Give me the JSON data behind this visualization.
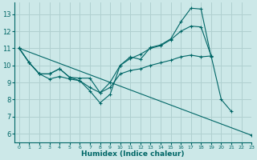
{
  "xlabel": "Humidex (Indice chaleur)",
  "bg_color": "#cce8e8",
  "grid_color": "#b0d0d0",
  "line_color": "#006666",
  "xlim": [
    -0.5,
    23
  ],
  "ylim": [
    5.5,
    13.7
  ],
  "yticks": [
    6,
    7,
    8,
    9,
    10,
    11,
    12,
    13
  ],
  "xticks": [
    0,
    1,
    2,
    3,
    4,
    5,
    6,
    7,
    8,
    9,
    10,
    11,
    12,
    13,
    14,
    15,
    16,
    17,
    18,
    19,
    20,
    21,
    22,
    23
  ],
  "lines": [
    {
      "x": [
        0,
        1,
        2,
        3,
        4,
        5,
        6,
        7,
        8,
        9,
        10,
        11,
        12,
        13,
        14,
        15,
        16,
        17,
        18,
        19,
        20,
        21,
        22,
        23
      ],
      "y": [
        11.0,
        10.15,
        9.5,
        9.2,
        9.35,
        9.2,
        9.1,
        8.5,
        7.8,
        8.3,
        10.0,
        10.5,
        10.35,
        11.05,
        11.2,
        11.55,
        12.55,
        13.35,
        13.3,
        10.5,
        null,
        null,
        null,
        null
      ]
    },
    {
      "x": [
        0,
        1,
        2,
        3,
        4,
        5,
        6,
        7,
        8,
        9,
        10,
        11,
        12,
        13,
        14,
        15,
        16,
        17,
        18,
        19,
        20,
        21,
        22,
        23
      ],
      "y": [
        11.0,
        10.15,
        9.5,
        9.5,
        9.8,
        9.3,
        9.25,
        9.25,
        8.4,
        9.0,
        10.0,
        10.4,
        10.65,
        11.0,
        11.15,
        11.5,
        12.0,
        12.3,
        12.25,
        10.55,
        null,
        null,
        null,
        null
      ]
    },
    {
      "x": [
        0,
        1,
        2,
        3,
        4,
        5,
        6,
        7,
        8,
        9,
        10,
        11,
        12,
        13,
        14,
        15,
        16,
        17,
        18,
        19,
        20,
        21,
        22,
        23
      ],
      "y": [
        11.0,
        10.15,
        9.5,
        9.5,
        9.8,
        9.3,
        9.1,
        8.7,
        8.4,
        8.7,
        9.5,
        9.7,
        9.8,
        10.0,
        10.15,
        10.3,
        10.5,
        10.6,
        10.5,
        10.55,
        8.0,
        7.3,
        null,
        null
      ]
    },
    {
      "x": [
        0,
        23
      ],
      "y": [
        11.0,
        5.9
      ]
    }
  ]
}
